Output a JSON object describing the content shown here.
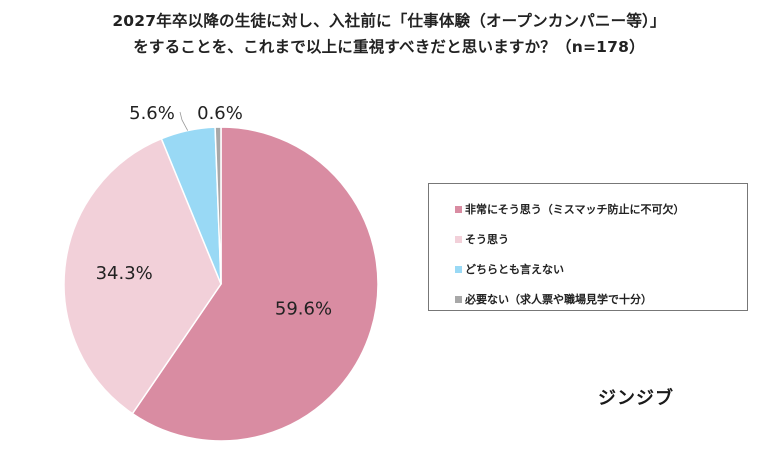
{
  "title": {
    "line1": "2027年卒以降の生徒に対し、入社前に「仕事体験（オープンカンパニー等）」",
    "line2": "をすることを、これまで以上に重視すべきだと思いますか？（n=178）"
  },
  "chart_data": {
    "type": "pie",
    "title": "2027年卒以降の生徒に対し、入社前に「仕事体験（オープンカンパニー等）」をすることを、これまで以上に重視すべきだと思いますか？（n=178）",
    "slices": [
      {
        "label": "非常にそう思う（ミスマッチ防止に不可欠）",
        "value": 59.6,
        "display": "59.6%",
        "color": "#d98ca2"
      },
      {
        "label": "そう思う",
        "value": 34.3,
        "display": "34.3%",
        "color": "#f2d0d9"
      },
      {
        "label": "どちらとも言えない",
        "value": 5.6,
        "display": "5.6%",
        "color": "#99d9f5"
      },
      {
        "label": "必要ない（求人票や職場見学で十分）",
        "value": 0.6,
        "display": "0.6%",
        "color": "#a8a8a8"
      }
    ],
    "start": "12 o'clock",
    "direction": "clockwise",
    "legend_position": "right"
  },
  "brand": "ジンジブ"
}
